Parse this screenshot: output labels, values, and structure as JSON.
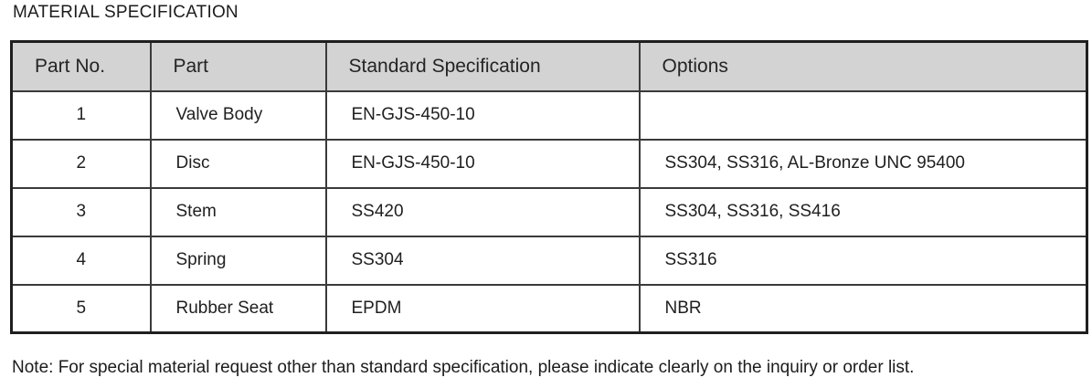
{
  "page": {
    "title": "MATERIAL SPECIFICATION",
    "note": "Note: For special material request other than standard specification, please indicate clearly on the inquiry or order list."
  },
  "table": {
    "columns": [
      {
        "key": "part_no",
        "label": "Part No."
      },
      {
        "key": "part",
        "label": "Part"
      },
      {
        "key": "standard_spec",
        "label": "Standard Specification"
      },
      {
        "key": "options",
        "label": "Options"
      }
    ],
    "rows": [
      {
        "part_no": "1",
        "part": "Valve Body",
        "standard_spec": "EN-GJS-450-10",
        "options": ""
      },
      {
        "part_no": "2",
        "part": "Disc",
        "standard_spec": "EN-GJS-450-10",
        "options": "SS304, SS316, AL-Bronze UNC 95400"
      },
      {
        "part_no": "3",
        "part": "Stem",
        "standard_spec": "SS420",
        "options": "SS304, SS316, SS416"
      },
      {
        "part_no": "4",
        "part": "Spring",
        "standard_spec": "SS304",
        "options": "SS316"
      },
      {
        "part_no": "5",
        "part": "Rubber Seat",
        "standard_spec": "EPDM",
        "options": "NBR"
      }
    ],
    "colors": {
      "header_bg": "#d3d3d3",
      "outer_border": "#1f1f1f",
      "inner_border": "#3a3a3a",
      "text": "#1f1f1f"
    }
  }
}
